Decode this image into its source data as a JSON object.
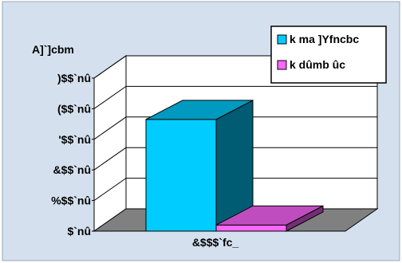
{
  "chart_data": {
    "type": "bar",
    "ylabel": "A]`]cbm",
    "ytick_labels": [
      "$`nû",
      "%$$`nû",
      "&$$`nû",
      "'$$`nû",
      "($$`nû",
      ")$$`nû"
    ],
    "ylim": [
      0,
      500
    ],
    "grid": true,
    "legend_position": "top-right",
    "categories": [
      "&$$$`fc_"
    ],
    "series": [
      {
        "name": "k ma ]Yfncbc",
        "values": [
          365
        ],
        "color": "#00ccff"
      },
      {
        "name": "k dûmb ûc",
        "values": [
          20
        ],
        "color": "#ff66ff"
      }
    ]
  },
  "colors": {
    "background": "#d4e0ee",
    "plot_area": "#ffffff",
    "floor": "#808080",
    "side_wall": "#e8e8e8"
  }
}
